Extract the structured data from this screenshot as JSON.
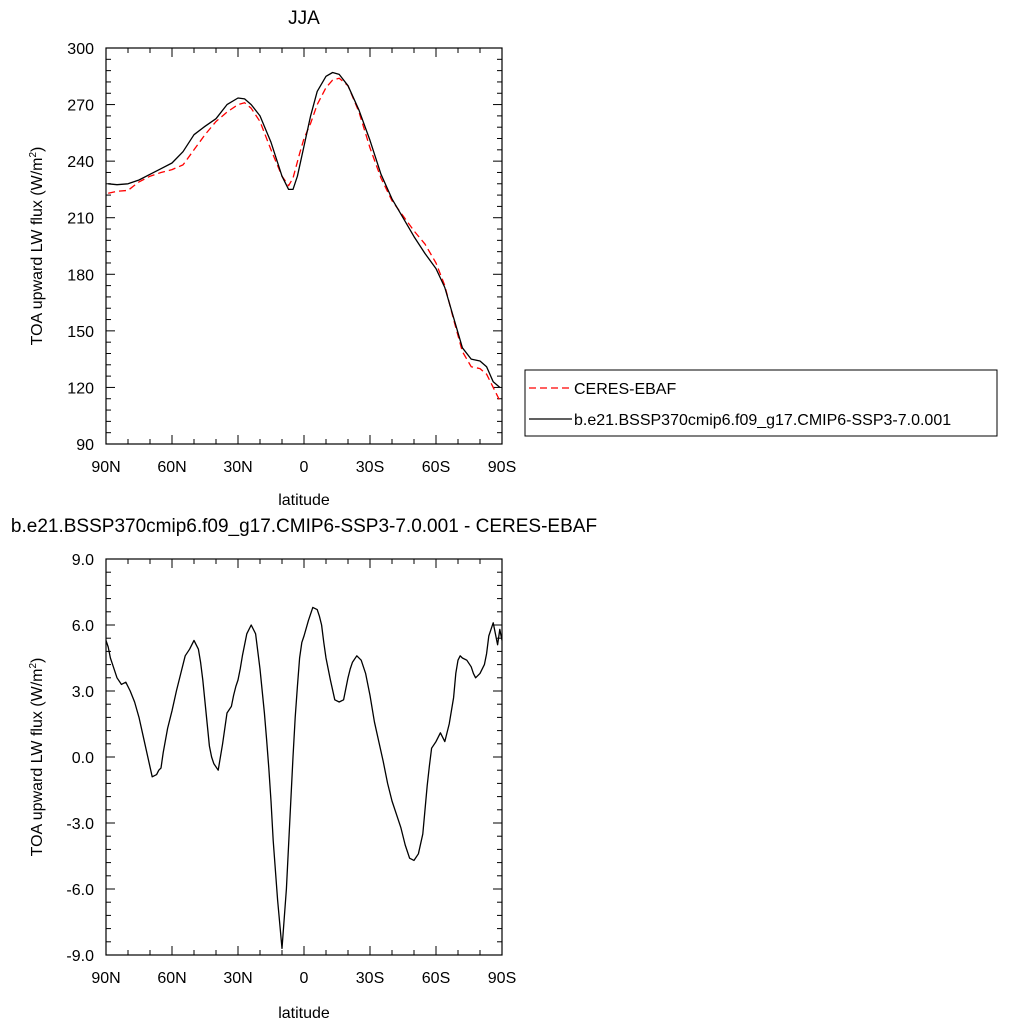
{
  "chart_data": [
    {
      "type": "line",
      "title": "JJA",
      "xlabel": "latitude",
      "ylabel": "TOA upward LW flux (W/m",
      "ylabel_sup": "2",
      "ylabel_end": ")",
      "xlim": [
        -90,
        90
      ],
      "ylim": [
        90,
        300
      ],
      "x_ticks": [
        -90,
        -60,
        -30,
        0,
        30,
        60,
        90
      ],
      "x_tick_labels": [
        "90N",
        "60N",
        "30N",
        "0",
        "30S",
        "60S",
        "90S"
      ],
      "y_ticks": [
        90,
        120,
        150,
        180,
        210,
        240,
        270,
        300
      ],
      "y_tick_labels": [
        "90",
        "120",
        "150",
        "180",
        "210",
        "240",
        "270",
        "300"
      ],
      "grid": false,
      "legend_position": "right",
      "series": [
        {
          "name": "CERES-EBAF",
          "color": "#ff0000",
          "dash": "dashed",
          "x": [
            -89,
            -85,
            -80,
            -75,
            -70,
            -65,
            -60,
            -55,
            -50,
            -45,
            -40,
            -35,
            -30,
            -27,
            -24,
            -20,
            -15,
            -10,
            -7,
            -5,
            -2,
            0,
            3,
            6,
            10,
            13,
            16,
            20,
            25,
            30,
            35,
            40,
            45,
            50,
            55,
            60,
            64,
            68,
            72,
            76,
            80,
            83,
            86,
            89
          ],
          "values": [
            223,
            224,
            224.5,
            229,
            232,
            234,
            235.5,
            238,
            246,
            254,
            261,
            266,
            270,
            271,
            268,
            261,
            246,
            232,
            227,
            231,
            244,
            252,
            260,
            270,
            279,
            283,
            284,
            280,
            266,
            247,
            231,
            219,
            211,
            203,
            196,
            186,
            174,
            156,
            139,
            131,
            130,
            127,
            120,
            113
          ]
        },
        {
          "name": "b.e21.BSSP370cmip6.f09_g17.CMIP6-SSP3-7.0.001",
          "color": "#000000",
          "dash": "solid",
          "x": [
            -89,
            -85,
            -80,
            -75,
            -70,
            -65,
            -60,
            -55,
            -50,
            -45,
            -40,
            -35,
            -30,
            -27,
            -24,
            -20,
            -15,
            -10,
            -7,
            -5,
            -3,
            0,
            3,
            6,
            10,
            13,
            16,
            20,
            25,
            30,
            35,
            40,
            45,
            50,
            55,
            60,
            64,
            68,
            72,
            76,
            80,
            83,
            86,
            89
          ],
          "values": [
            228,
            227.5,
            228,
            230,
            233,
            236,
            239,
            245,
            254,
            258.5,
            262.5,
            270,
            273.5,
            273,
            270,
            264,
            250,
            232,
            225,
            225,
            232,
            248,
            264,
            277,
            285,
            287,
            286,
            280,
            267,
            251,
            233,
            220,
            210,
            200,
            191,
            183,
            173,
            157,
            141,
            135,
            134,
            131,
            123,
            120
          ]
        }
      ]
    },
    {
      "type": "line",
      "title": "b.e21.BSSP370cmip6.f09_g17.CMIP6-SSP3-7.0.001 - CERES-EBAF",
      "xlabel": "latitude",
      "ylabel": "TOA upward LW flux (W/m",
      "ylabel_sup": "2",
      "ylabel_end": ")",
      "xlim": [
        -90,
        90
      ],
      "ylim": [
        -9.0,
        9.0
      ],
      "x_ticks": [
        -90,
        -60,
        -30,
        0,
        30,
        60,
        90
      ],
      "x_tick_labels": [
        "90N",
        "60N",
        "30N",
        "0",
        "30S",
        "60S",
        "90S"
      ],
      "y_ticks": [
        -9,
        -6,
        -3,
        0,
        3,
        6,
        9
      ],
      "y_tick_labels": [
        "-9.0",
        "-6.0",
        "-3.0",
        "0.0",
        "3.0",
        "6.0",
        "9.0"
      ],
      "grid": false,
      "series": [
        {
          "color": "#000000",
          "dash": "solid",
          "x": [
            -90,
            -89,
            -88,
            -87,
            -85,
            -83,
            -81,
            -79,
            -77,
            -75,
            -73,
            -71,
            -69,
            -67,
            -66,
            -65,
            -64,
            -62,
            -60,
            -58,
            -56,
            -54,
            -52,
            -50,
            -48,
            -47,
            -46,
            -45,
            -44,
            -43,
            -42,
            -41,
            -39,
            -37,
            -35,
            -33,
            -32,
            -31,
            -30,
            -29,
            -28,
            -26,
            -24,
            -22,
            -20,
            -18,
            -17,
            -16,
            -15,
            -14,
            -12,
            -10,
            -8,
            -6,
            -5,
            -4,
            -3,
            -2,
            -1,
            0,
            2,
            4,
            6,
            7,
            8,
            9,
            10,
            12,
            14,
            16,
            18,
            19,
            20,
            21,
            22,
            24,
            26,
            28,
            30,
            32,
            34,
            36,
            38,
            40,
            42,
            44,
            46,
            48,
            50,
            52,
            54,
            55,
            56,
            57,
            58,
            60,
            62,
            64,
            66,
            68,
            69,
            70,
            71,
            72,
            74,
            76,
            77,
            78,
            80,
            82,
            83,
            84,
            86,
            87,
            88,
            89,
            90
          ],
          "values": [
            5.3,
            5.0,
            4.5,
            4.2,
            3.6,
            3.3,
            3.4,
            3.0,
            2.5,
            1.8,
            0.9,
            0.0,
            -0.9,
            -0.8,
            -0.6,
            -0.5,
            0.2,
            1.3,
            2.1,
            3.0,
            3.8,
            4.6,
            4.9,
            5.3,
            4.9,
            4.3,
            3.5,
            2.5,
            1.5,
            0.5,
            0.0,
            -0.3,
            -0.6,
            0.6,
            2.0,
            2.3,
            2.8,
            3.2,
            3.5,
            4.0,
            4.6,
            5.6,
            6.0,
            5.6,
            4.0,
            2.0,
            0.8,
            -0.5,
            -2.0,
            -3.8,
            -6.5,
            -8.7,
            -6.0,
            -2.0,
            0.0,
            1.8,
            3.2,
            4.5,
            5.2,
            5.5,
            6.2,
            6.8,
            6.7,
            6.4,
            6.0,
            5.2,
            4.5,
            3.5,
            2.6,
            2.5,
            2.6,
            3.1,
            3.6,
            4.0,
            4.3,
            4.6,
            4.4,
            3.8,
            2.8,
            1.6,
            0.7,
            -0.2,
            -1.2,
            -2.0,
            -2.6,
            -3.2,
            -4.0,
            -4.6,
            -4.7,
            -4.4,
            -3.5,
            -2.4,
            -1.3,
            -0.4,
            0.4,
            0.7,
            1.1,
            0.7,
            1.5,
            2.7,
            3.8,
            4.4,
            4.6,
            4.5,
            4.4,
            4.1,
            3.8,
            3.6,
            3.8,
            4.2,
            4.7,
            5.5,
            6.1,
            5.6,
            5.1,
            5.8,
            5.3
          ]
        }
      ]
    }
  ]
}
